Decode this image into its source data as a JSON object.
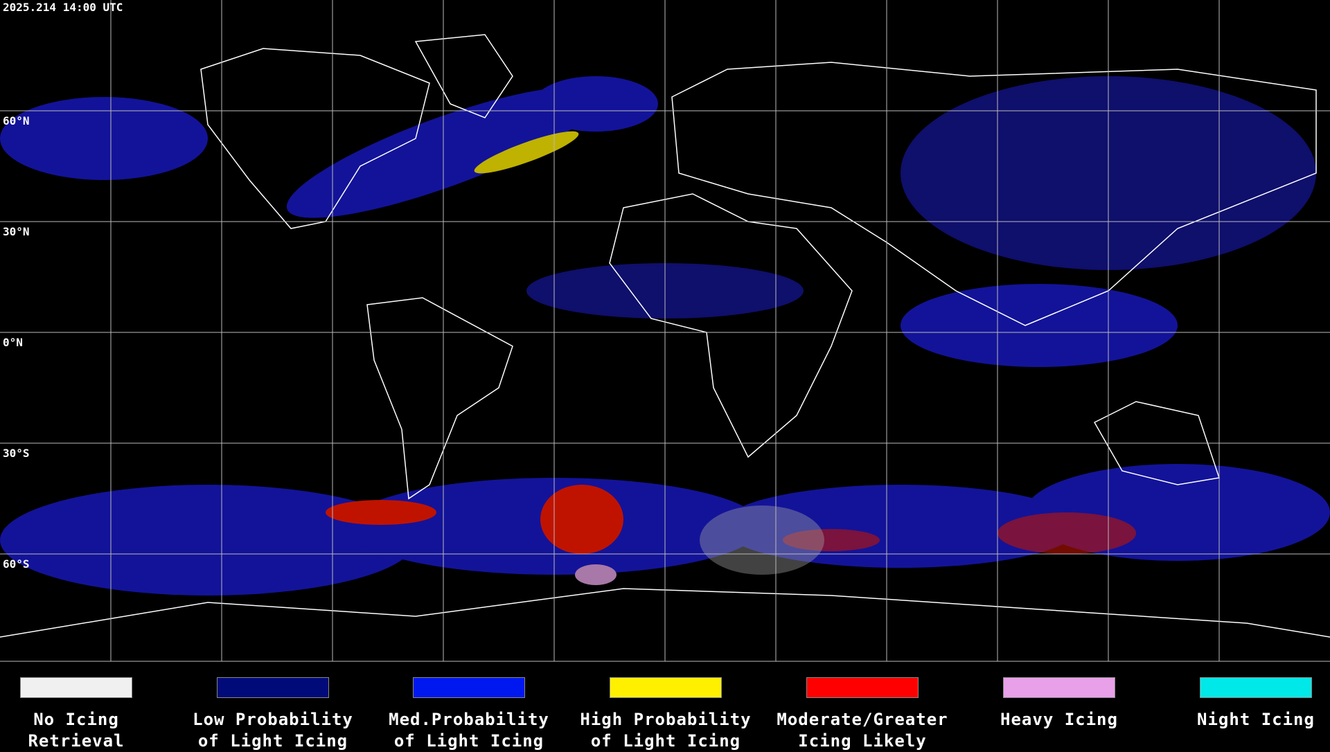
{
  "timestamp": "2025.214 14:00 UTC",
  "lat_labels": [
    "60°N",
    "30°N",
    "0°N",
    "30°S",
    "60°S"
  ],
  "legend": [
    {
      "lines": [
        "No Icing",
        "Retrieval"
      ],
      "color": "#f0f0f0"
    },
    {
      "lines": [
        "Low Probability",
        "of Light Icing"
      ],
      "color": "#000a78"
    },
    {
      "lines": [
        "Med.Probability",
        "of Light Icing"
      ],
      "color": "#0018f0"
    },
    {
      "lines": [
        "High Probability",
        "of Light Icing"
      ],
      "color": "#fff000"
    },
    {
      "lines": [
        "Moderate/Greater",
        "Icing Likely"
      ],
      "color": "#ff0000"
    },
    {
      "lines": [
        "Heavy Icing"
      ],
      "color": "#e8a0e8"
    },
    {
      "lines": [
        "Night Icing"
      ],
      "color": "#00e8e8"
    }
  ]
}
